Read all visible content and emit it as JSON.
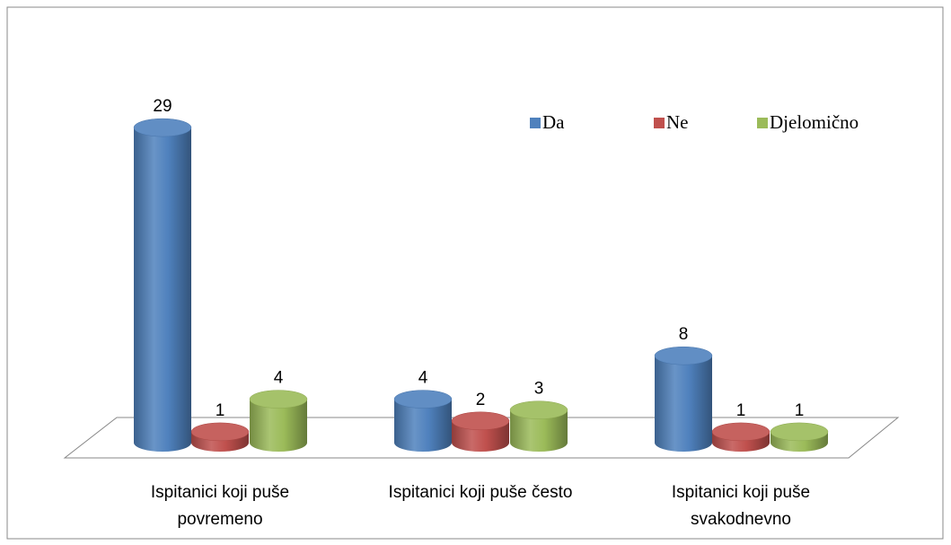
{
  "chart_data": {
    "type": "bar",
    "categories": [
      "Ispitanici koji puše povremeno",
      "Ispitanici koji puše često",
      "Ispitanici koji puše svakodnevno"
    ],
    "series": [
      {
        "name": "Da",
        "color": "#4f81bd",
        "values": [
          29,
          4,
          8
        ]
      },
      {
        "name": "Ne",
        "color": "#c0504d",
        "values": [
          1,
          2,
          1
        ]
      },
      {
        "name": "Djelomično",
        "color": "#9bbb59",
        "values": [
          4,
          3,
          1
        ]
      }
    ],
    "legend": "top-right"
  }
}
